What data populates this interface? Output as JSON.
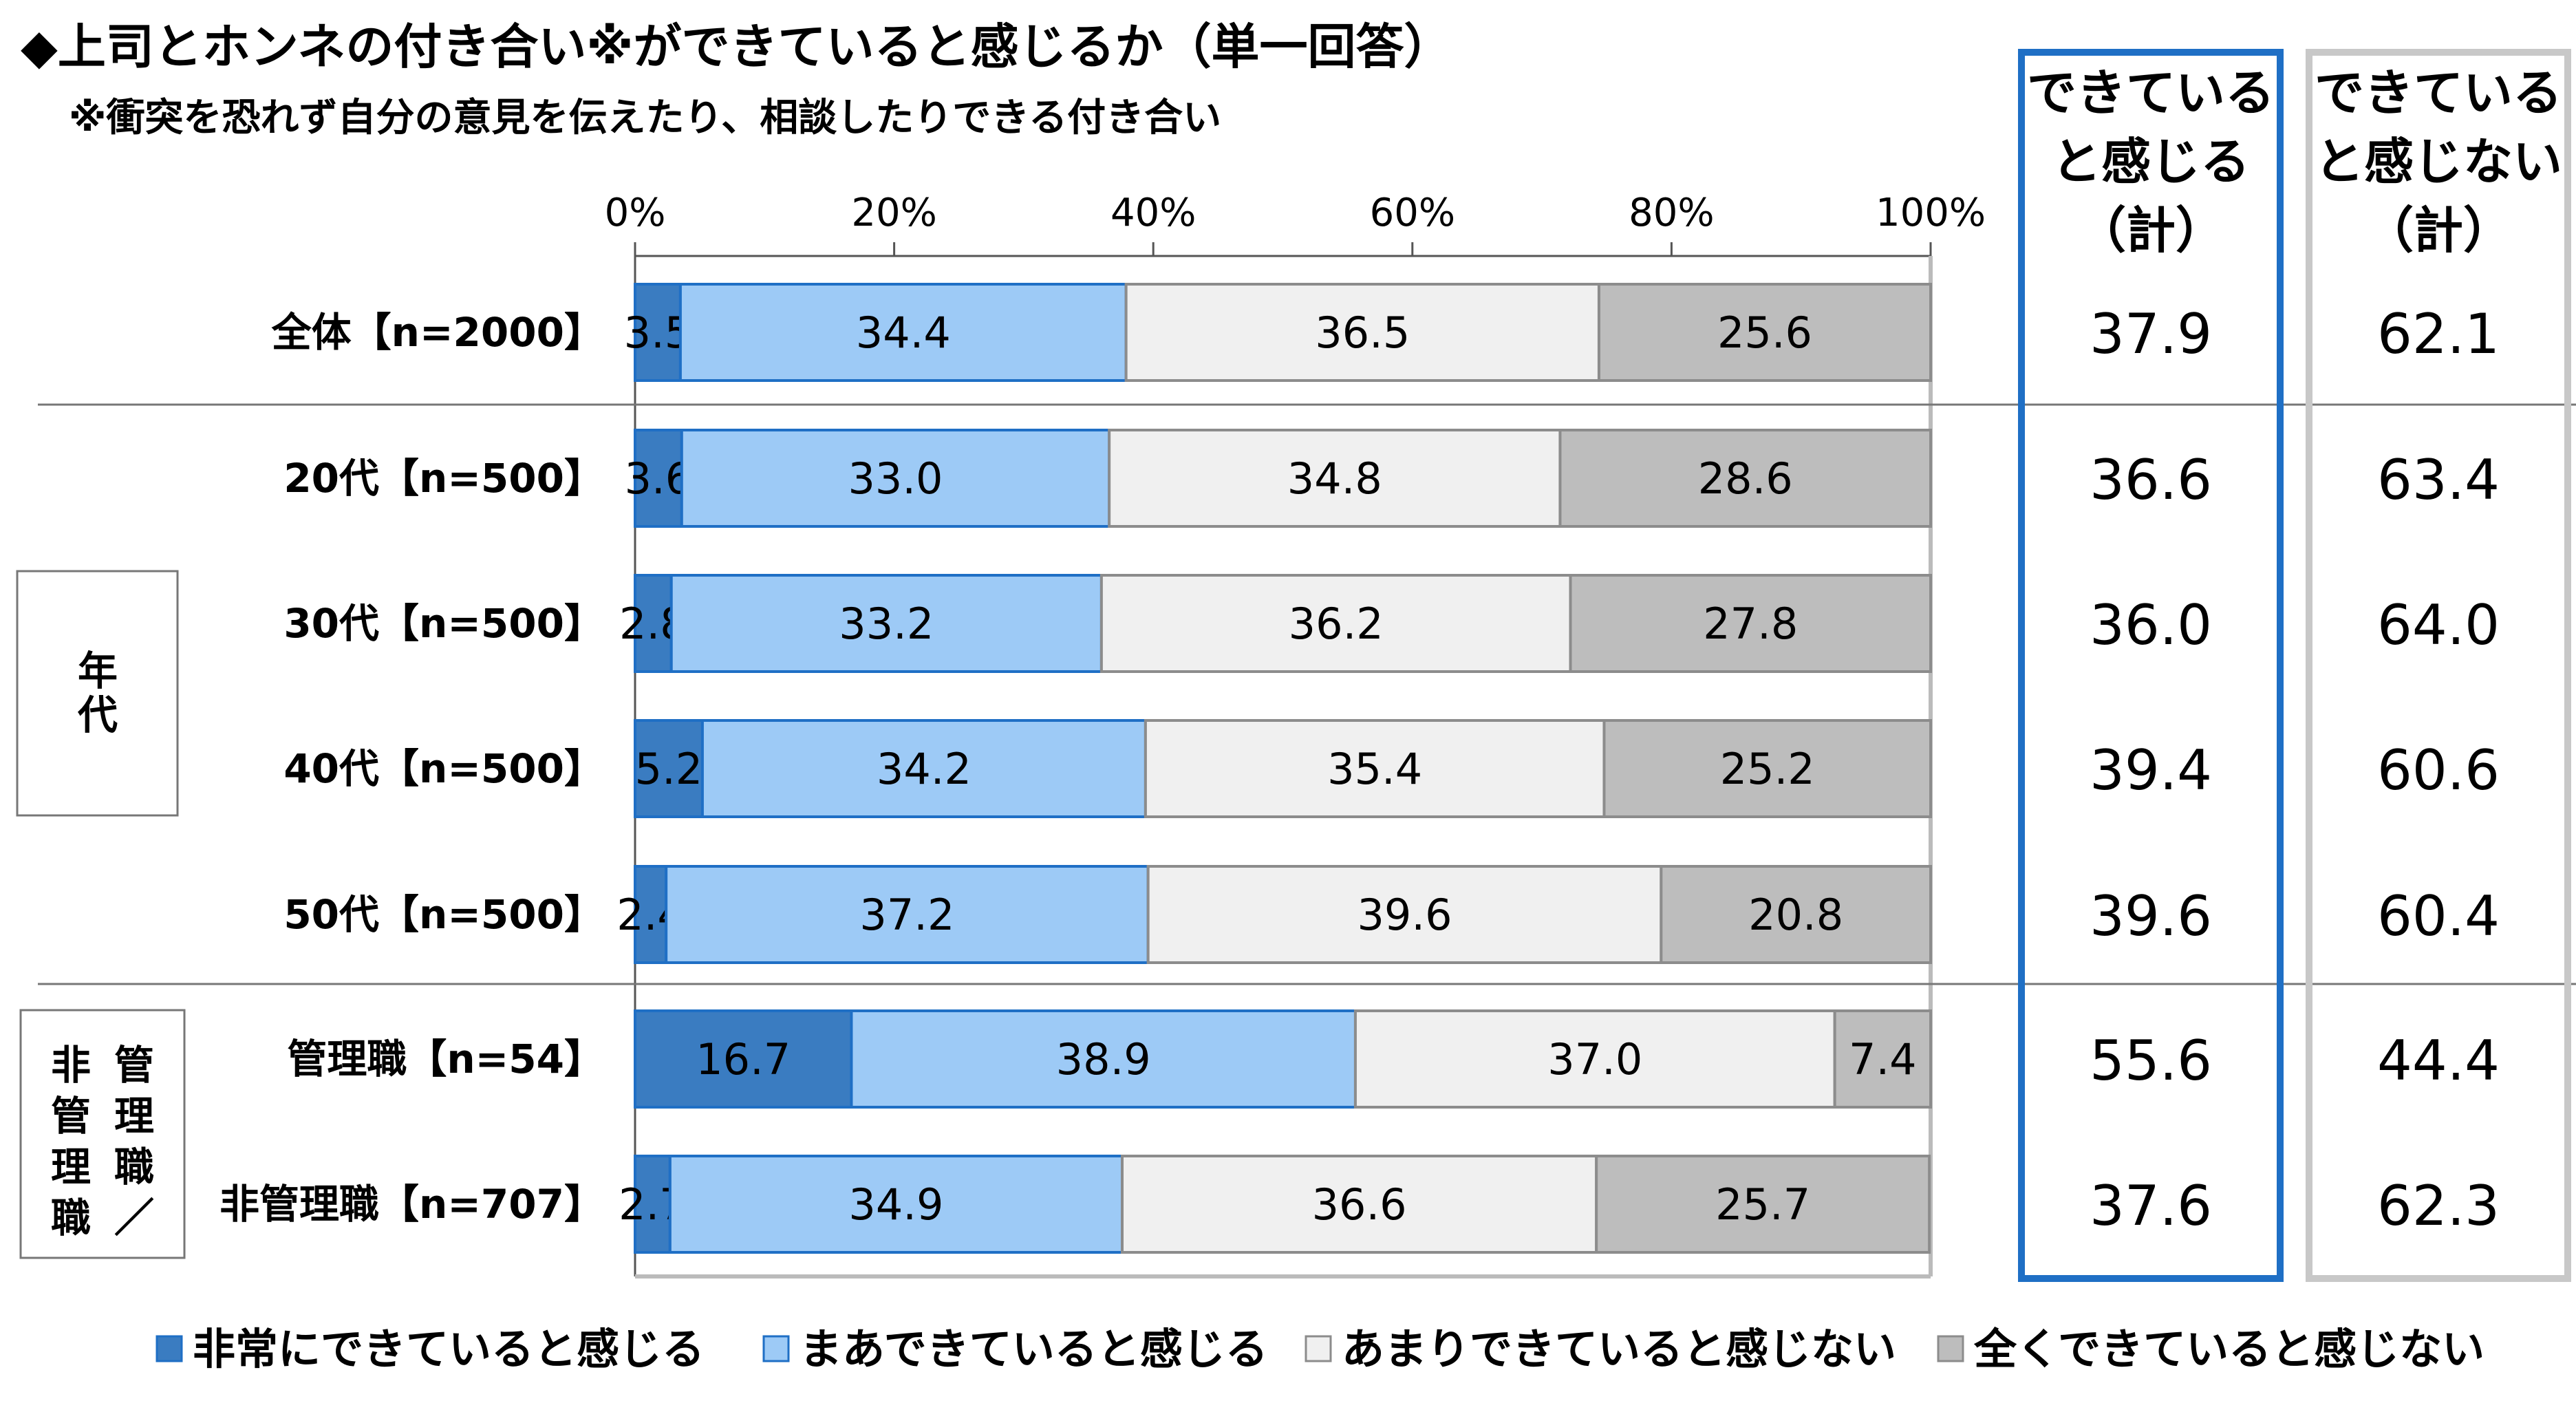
{
  "title": "◆上司とホンネの付き合い※ができていると感じるか（単一回答）",
  "subtitle": "※衝突を恐れず自分の意見を伝えたり、相談したりできる付き合い",
  "column_headers": [
    [
      "できている",
      "と感じる",
      "（計）"
    ],
    [
      "できている",
      "と感じない",
      "（計）"
    ]
  ],
  "groups": [
    {
      "lines": [
        "年",
        "代"
      ]
    },
    {
      "columns": [
        [
          "非",
          "管",
          "理",
          "職"
        ],
        [
          "管",
          "理",
          "職",
          "／"
        ]
      ]
    }
  ],
  "colors": {
    "very_much": "#3a7cc1",
    "somewhat": "#9dcaf6",
    "not_really": "#f0f0f0",
    "not_at_all": "#bdbdbd",
    "border_blue": "#1f6fc5",
    "border_gray": "#c8c8c8"
  },
  "chart_data": {
    "type": "bar",
    "orientation": "horizontal",
    "stacked": true,
    "xlim": [
      0,
      100
    ],
    "xticks": [
      "0%",
      "20%",
      "40%",
      "60%",
      "80%",
      "100%"
    ],
    "categories": [
      "全体【n=2000】",
      "20代【n=500】",
      "30代【n=500】",
      "40代【n=500】",
      "50代【n=500】",
      "管理職【n=54】",
      "非管理職【n=707】"
    ],
    "series": [
      {
        "name": "非常にできていると感じる",
        "values": [
          3.5,
          3.6,
          2.8,
          5.2,
          2.4,
          16.7,
          2.7
        ]
      },
      {
        "name": "まあできていると感じる",
        "values": [
          34.4,
          33.0,
          33.2,
          34.2,
          37.2,
          38.9,
          34.9
        ]
      },
      {
        "name": "あまりできていると感じない",
        "values": [
          36.5,
          34.8,
          36.2,
          35.4,
          39.6,
          37.0,
          36.6
        ]
      },
      {
        "name": "全くできていると感じない",
        "values": [
          25.6,
          28.6,
          27.8,
          25.2,
          20.8,
          7.4,
          25.7
        ]
      }
    ],
    "summary_feel": [
      "37.9",
      "36.6",
      "36.0",
      "39.4",
      "39.6",
      "55.6",
      "37.6"
    ],
    "summary_not_feel": [
      "62.1",
      "63.4",
      "64.0",
      "60.6",
      "60.4",
      "44.4",
      "62.3"
    ],
    "legend_position": "bottom"
  }
}
